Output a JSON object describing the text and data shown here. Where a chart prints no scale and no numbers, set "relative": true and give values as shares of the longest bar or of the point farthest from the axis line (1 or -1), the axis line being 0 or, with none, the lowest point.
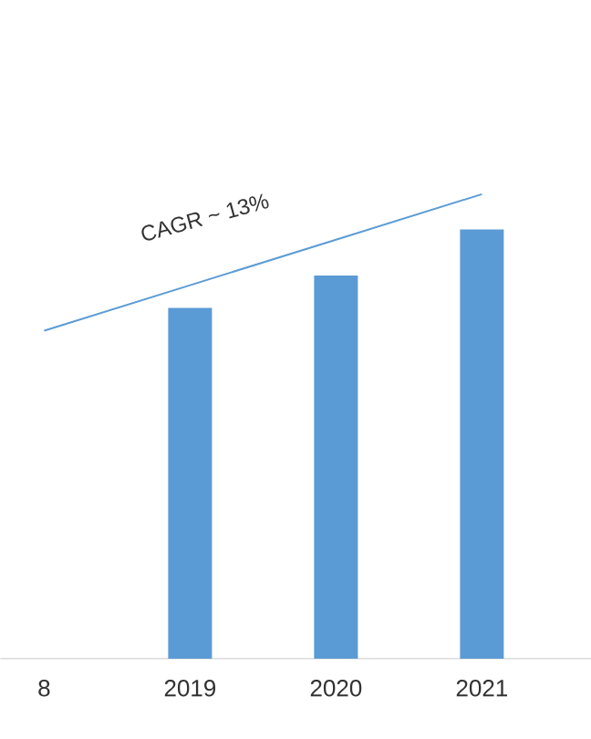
{
  "chart_data": {
    "type": "bar",
    "relative": true,
    "categories": [
      "8",
      "2019",
      "2020",
      "2021"
    ],
    "series": [
      {
        "color": "#5b9bd5",
        "values": [
          null,
          0.755,
          0.825,
          0.924
        ]
      },
      {
        "type": "line",
        "color": "#5b9bd5",
        "values": [
          0.706,
          0.804,
          0.902,
          1
        ]
      }
    ],
    "annotations": [
      "CAGR ~ 13%"
    ]
  }
}
